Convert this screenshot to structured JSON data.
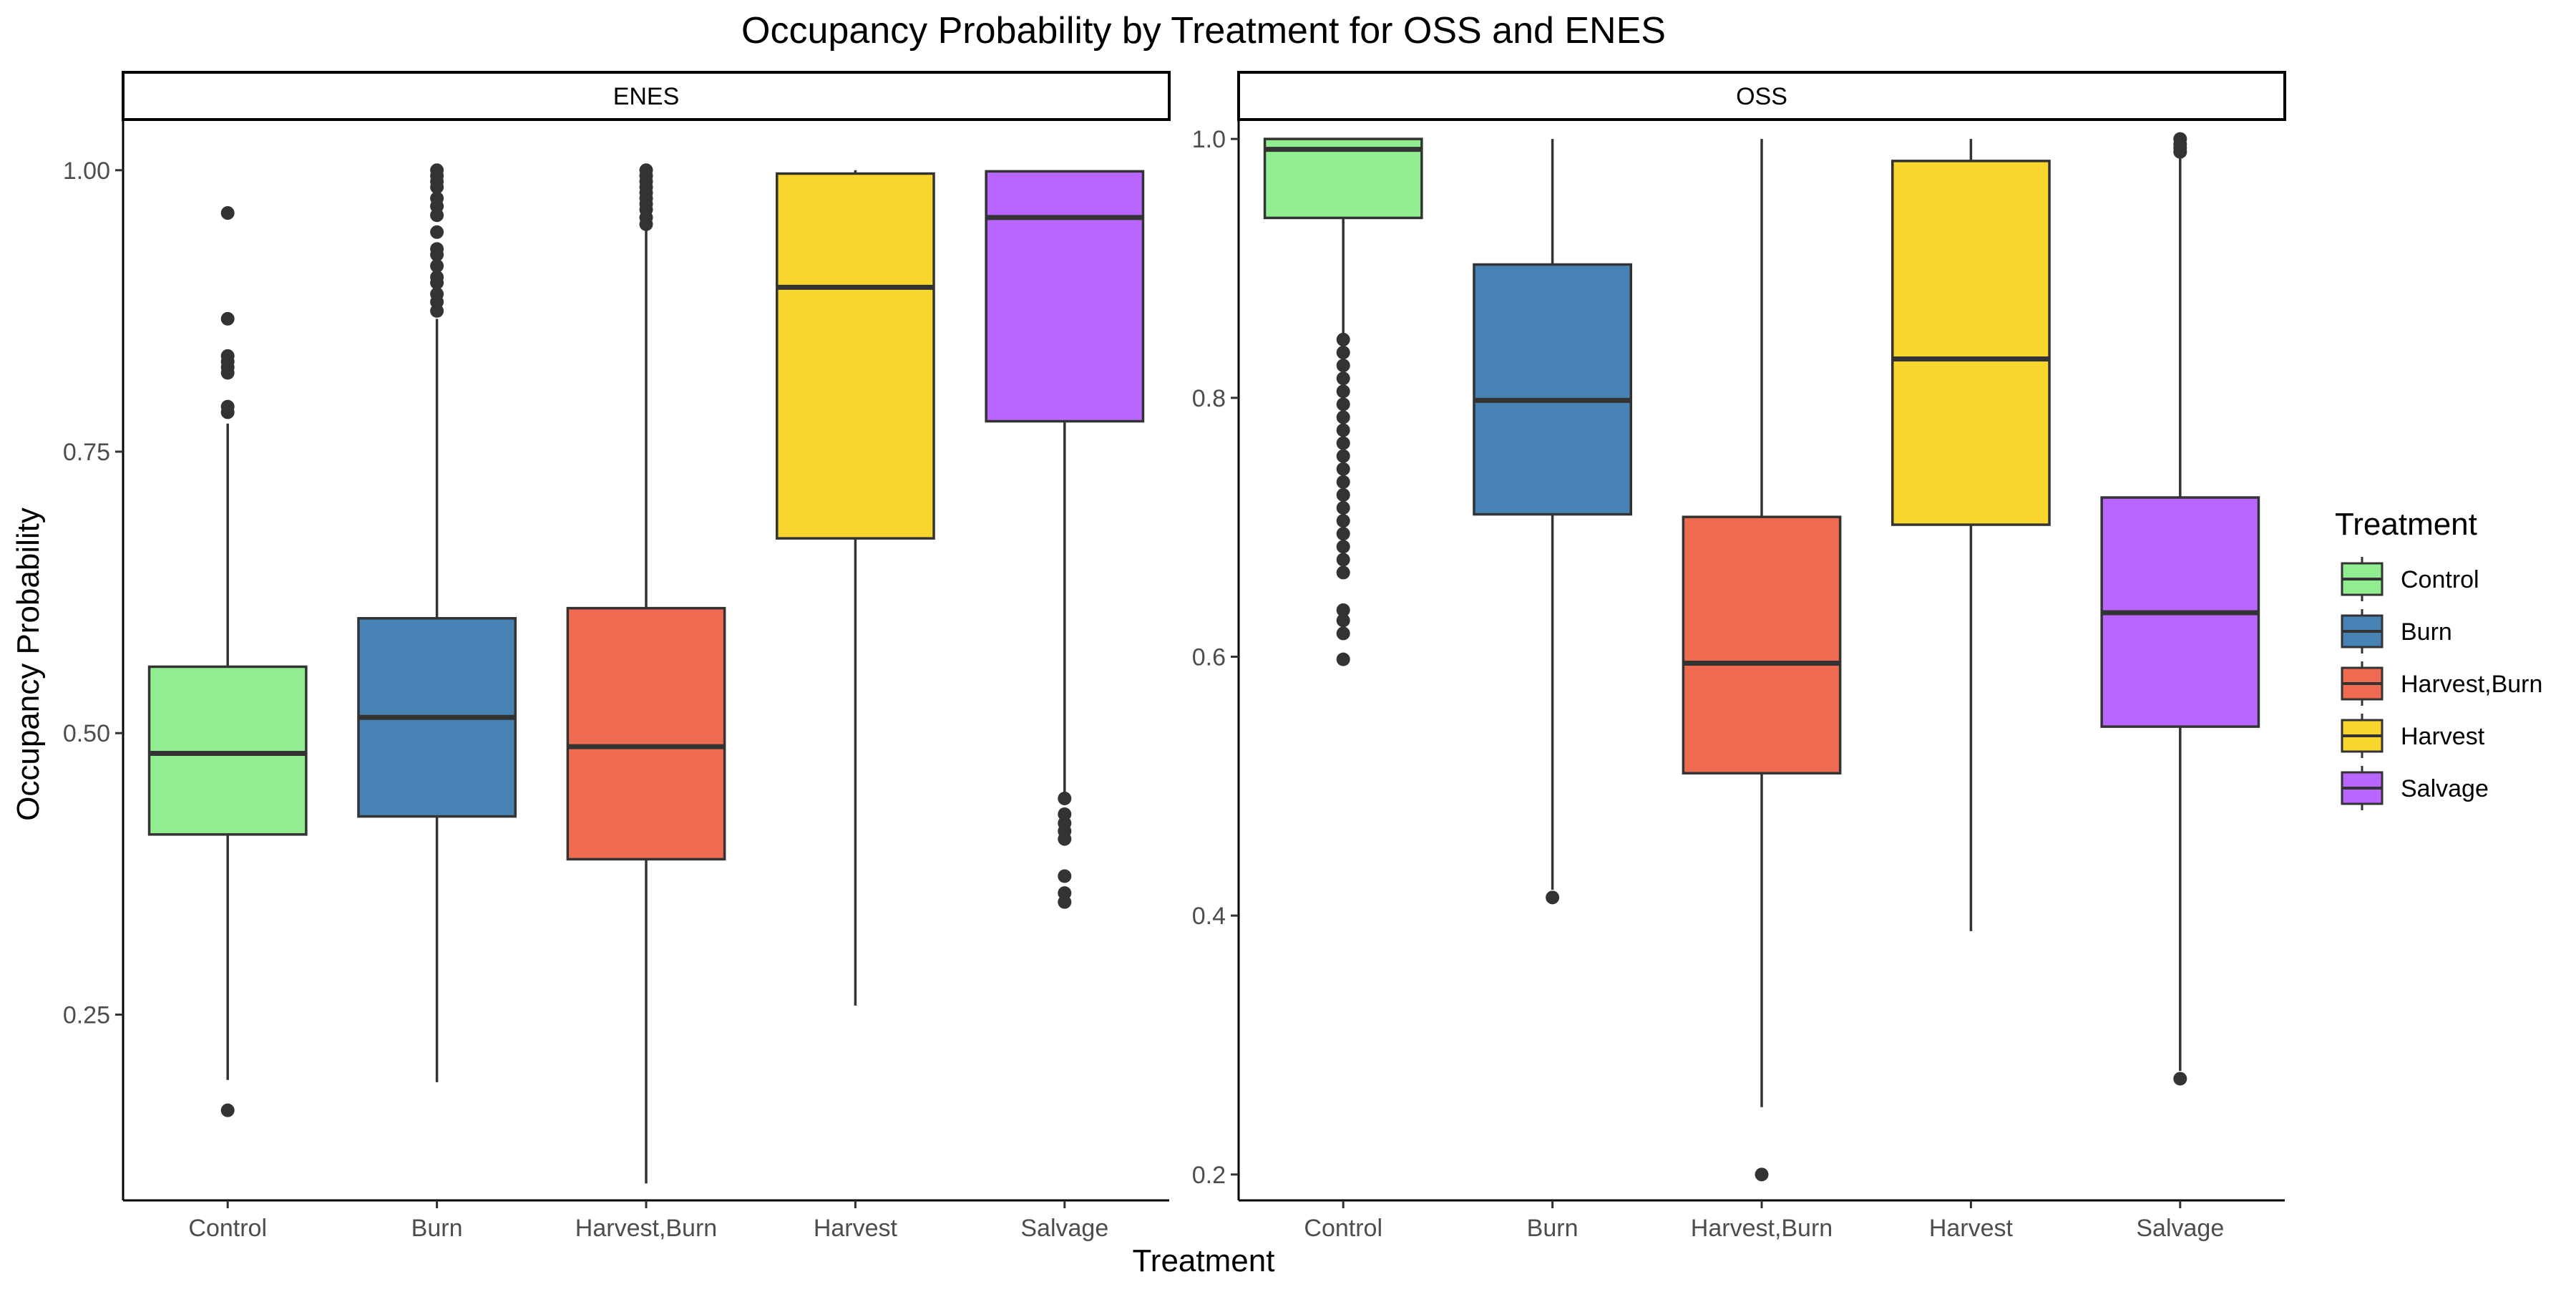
{
  "chart_data": {
    "type": "boxplot",
    "title": "Occupancy Probability by Treatment for OSS and ENES",
    "xlabel": "Treatment",
    "ylabel": "Occupancy Probability",
    "categories": [
      "Control",
      "Burn",
      "Harvest,Burn",
      "Harvest",
      "Salvage"
    ],
    "colors": {
      "Control": "#90ee90",
      "Burn": "#4682b4",
      "Harvest,Burn": "#ee6a50",
      "Harvest": "#f9d62e",
      "Salvage": "#b866ff"
    },
    "legend": {
      "title": "Treatment",
      "placement": "right",
      "entries": [
        "Control",
        "Burn",
        "Harvest,Burn",
        "Harvest",
        "Salvage"
      ]
    },
    "grid": false,
    "panels": [
      {
        "label": "ENES",
        "ylim": [
          0.085,
          1.045
        ],
        "yticks": [
          0.25,
          0.5,
          0.75,
          1.0
        ],
        "ytick_labels": [
          "0.25",
          "0.50",
          "0.75",
          "1.00"
        ],
        "boxes": [
          {
            "category": "Control",
            "whisker_low": 0.192,
            "q1": 0.41,
            "median": 0.482,
            "q3": 0.559,
            "whisker_high": 0.775,
            "outliers": [
              0.165,
              0.785,
              0.79,
              0.82,
              0.825,
              0.83,
              0.835,
              0.868,
              0.962
            ]
          },
          {
            "category": "Burn",
            "whisker_low": 0.19,
            "q1": 0.426,
            "median": 0.514,
            "q3": 0.602,
            "whisker_high": 0.868,
            "outliers": [
              0.875,
              0.883,
              0.89,
              0.9,
              0.905,
              0.915,
              0.925,
              0.93,
              0.945,
              0.96,
              0.968,
              0.975,
              0.985,
              0.99,
              0.995,
              1.0
            ]
          },
          {
            "category": "Harvest,Burn",
            "whisker_low": 0.1,
            "q1": 0.388,
            "median": 0.488,
            "q3": 0.611,
            "whisker_high": 0.948,
            "outliers": [
              0.952,
              0.958,
              0.965,
              0.97,
              0.975,
              0.98,
              0.985,
              0.99,
              0.995,
              1.0
            ]
          },
          {
            "category": "Harvest",
            "whisker_low": 0.258,
            "q1": 0.673,
            "median": 0.896,
            "q3": 0.997,
            "whisker_high": 1.0,
            "outliers": []
          },
          {
            "category": "Salvage",
            "whisker_low": 0.445,
            "q1": 0.777,
            "median": 0.958,
            "q3": 0.999,
            "whisker_high": 1.0,
            "outliers": [
              0.35,
              0.358,
              0.373,
              0.406,
              0.413,
              0.42,
              0.428,
              0.442
            ]
          }
        ]
      },
      {
        "label": "OSS",
        "ylim": [
          0.18,
          1.015
        ],
        "yticks": [
          0.2,
          0.4,
          0.6,
          0.8,
          1.0
        ],
        "ytick_labels": [
          "0.2",
          "0.4",
          "0.6",
          "0.8",
          "1.0"
        ],
        "boxes": [
          {
            "category": "Control",
            "whisker_low": 0.85,
            "q1": 0.939,
            "median": 0.992,
            "q3": 1.0,
            "whisker_high": 1.0,
            "outliers": [
              0.598,
              0.618,
              0.628,
              0.636,
              0.665,
              0.675,
              0.685,
              0.695,
              0.705,
              0.715,
              0.725,
              0.735,
              0.745,
              0.755,
              0.765,
              0.775,
              0.785,
              0.795,
              0.805,
              0.815,
              0.825,
              0.835,
              0.845
            ]
          },
          {
            "category": "Burn",
            "whisker_low": 0.42,
            "q1": 0.71,
            "median": 0.798,
            "q3": 0.903,
            "whisker_high": 1.0,
            "outliers": [
              0.414
            ]
          },
          {
            "category": "Harvest,Burn",
            "whisker_low": 0.252,
            "q1": 0.51,
            "median": 0.595,
            "q3": 0.708,
            "whisker_high": 1.0,
            "outliers": [
              0.2
            ]
          },
          {
            "category": "Harvest",
            "whisker_low": 0.388,
            "q1": 0.702,
            "median": 0.83,
            "q3": 0.983,
            "whisker_high": 1.0,
            "outliers": []
          },
          {
            "category": "Salvage",
            "whisker_low": 0.28,
            "q1": 0.546,
            "median": 0.634,
            "q3": 0.723,
            "whisker_high": 0.99,
            "outliers": [
              0.274,
              0.99,
              0.993,
              0.996,
              1.0
            ]
          }
        ]
      }
    ]
  }
}
